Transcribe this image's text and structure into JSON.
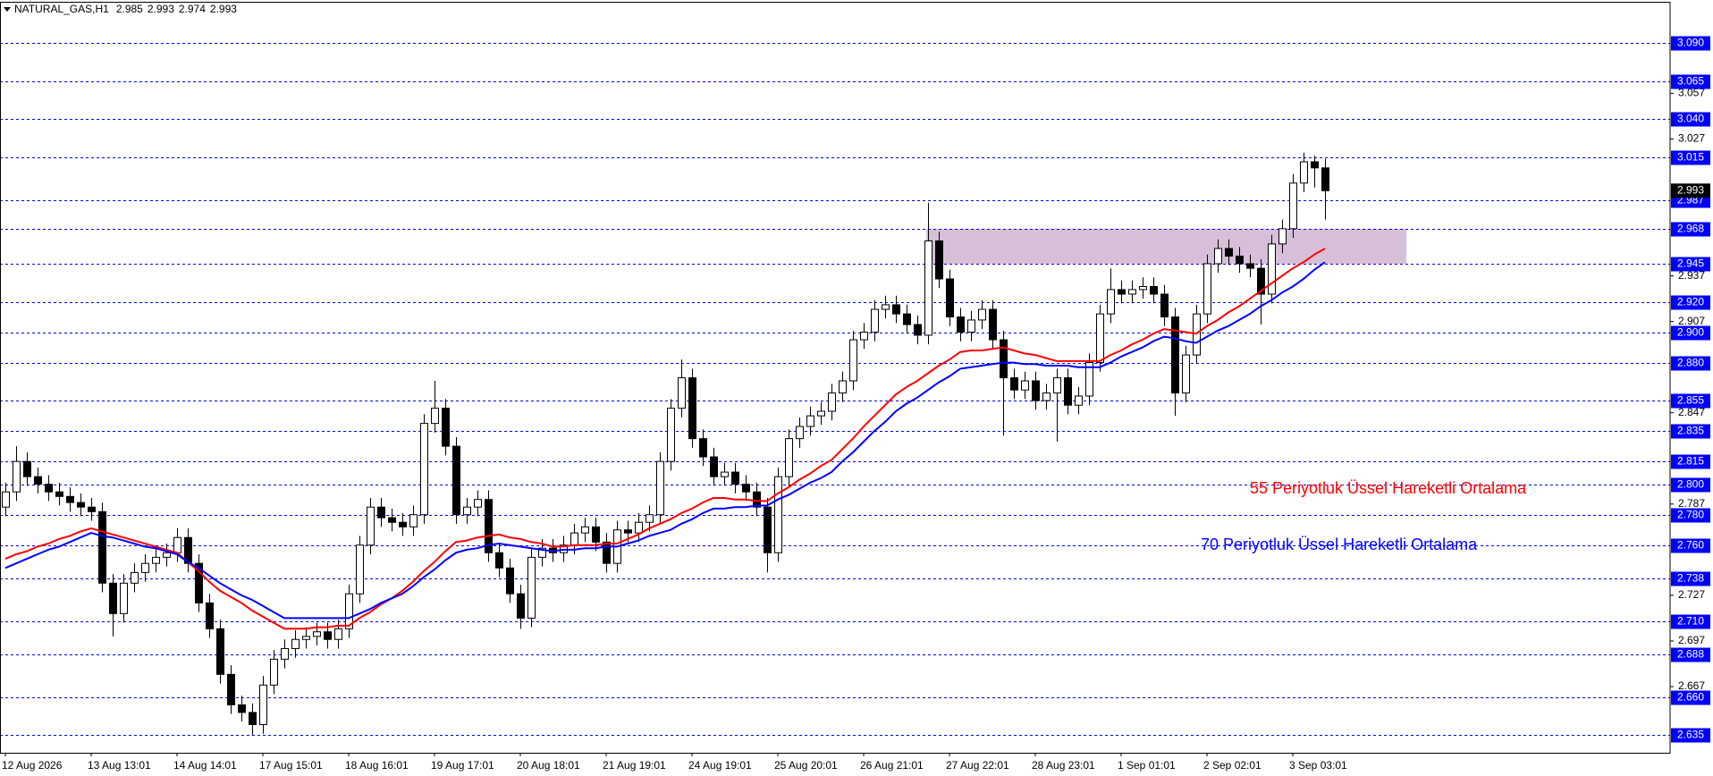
{
  "chart_data": {
    "type": "candlestick",
    "title": "NATURAL_GAS,H1",
    "ohlc_header": [
      2.985,
      2.993,
      2.974,
      2.993
    ],
    "ylim": [
      2.6235,
      3.1166
    ],
    "yticks": [
      3.057,
      3.027,
      2.937,
      2.907,
      2.847,
      2.787,
      2.727,
      2.697,
      2.667
    ],
    "levels": [
      {
        "value": 3.09,
        "label": "3.090"
      },
      3.065,
      {
        "value": 3.04,
        "label": "3.040"
      },
      3.015,
      2.987,
      2.968,
      2.945,
      {
        "value": 2.92,
        "label": "2.920"
      },
      {
        "value": 2.9,
        "label": "2.900"
      },
      {
        "value": 2.88,
        "label": "2.880"
      },
      2.855,
      2.835,
      2.815,
      {
        "value": 2.8,
        "label": "2.800"
      },
      {
        "value": 2.78,
        "label": "2.780"
      },
      {
        "value": 2.76,
        "label": "2.760"
      },
      2.738,
      {
        "value": 2.71,
        "label": "2.710"
      },
      2.688,
      {
        "value": 2.66,
        "label": "2.660"
      },
      2.635
    ],
    "level_color": "#0000ff",
    "zone": {
      "low": 2.945,
      "high": 2.968,
      "color": "#d8bfd8"
    },
    "up_color": "#ffffff",
    "down_color": "#000000",
    "categories": [
      "12 Aug 2026",
      null,
      null,
      null,
      null,
      null,
      null,
      null,
      "13 Aug 13:01",
      null,
      null,
      null,
      null,
      null,
      null,
      null,
      "14 Aug 14:01",
      null,
      null,
      null,
      null,
      null,
      null,
      null,
      "17 Aug 15:01",
      null,
      null,
      null,
      null,
      null,
      null,
      null,
      "18 Aug 16:01",
      null,
      null,
      null,
      null,
      null,
      null,
      null,
      "19 Aug 17:01",
      null,
      null,
      null,
      null,
      null,
      null,
      null,
      "20 Aug 18:01",
      null,
      null,
      null,
      null,
      null,
      null,
      null,
      "21 Aug 19:01",
      null,
      null,
      null,
      null,
      null,
      null,
      null,
      "24 Aug 19:01",
      null,
      null,
      null,
      null,
      null,
      null,
      null,
      "25 Aug 20:01",
      null,
      null,
      null,
      null,
      null,
      null,
      null,
      "26 Aug 21:01",
      null,
      null,
      null,
      null,
      null,
      null,
      null,
      "27 Aug 22:01",
      null,
      null,
      null,
      null,
      null,
      null,
      null,
      "28 Aug 23:01",
      null,
      null,
      null,
      null,
      null,
      null,
      null,
      "1 Sep 01:01",
      null,
      null,
      null,
      null,
      null,
      null,
      null,
      "2 Sep 02:01",
      null,
      null,
      null,
      null,
      null,
      null,
      null,
      "3 Sep 03:01",
      null,
      null,
      null
    ],
    "ohlc": [
      [
        2.785,
        2.801,
        2.779,
        2.795
      ],
      [
        2.795,
        2.825,
        2.789,
        2.815
      ],
      [
        2.815,
        2.821,
        2.799,
        2.805
      ],
      [
        2.805,
        2.811,
        2.794,
        2.8
      ],
      [
        2.8,
        2.806,
        2.789,
        2.795
      ],
      [
        2.795,
        2.801,
        2.786,
        2.792
      ],
      [
        2.792,
        2.798,
        2.782,
        2.788
      ],
      [
        2.788,
        2.794,
        2.779,
        2.785
      ],
      [
        2.785,
        2.791,
        2.776,
        2.782
      ],
      [
        2.782,
        2.788,
        2.729,
        2.735
      ],
      [
        2.735,
        2.741,
        2.7,
        2.715
      ],
      [
        2.715,
        2.741,
        2.709,
        2.735
      ],
      [
        2.735,
        2.748,
        2.729,
        2.742
      ],
      [
        2.742,
        2.754,
        2.736,
        2.748
      ],
      [
        2.748,
        2.758,
        2.742,
        2.752
      ],
      [
        2.752,
        2.761,
        2.746,
        2.755
      ],
      [
        2.755,
        2.771,
        2.749,
        2.765
      ],
      [
        2.765,
        2.771,
        2.742,
        2.748
      ],
      [
        2.748,
        2.754,
        2.716,
        2.722
      ],
      [
        2.722,
        2.728,
        2.699,
        2.705
      ],
      [
        2.705,
        2.711,
        2.669,
        2.675
      ],
      [
        2.675,
        2.681,
        2.649,
        2.655
      ],
      [
        2.655,
        2.661,
        2.644,
        2.65
      ],
      [
        2.65,
        2.656,
        2.635,
        2.642
      ],
      [
        2.642,
        2.674,
        2.636,
        2.668
      ],
      [
        2.668,
        2.691,
        2.662,
        2.685
      ],
      [
        2.685,
        2.698,
        2.679,
        2.692
      ],
      [
        2.692,
        2.704,
        2.686,
        2.698
      ],
      [
        2.698,
        2.706,
        2.692,
        2.7
      ],
      [
        2.7,
        2.709,
        2.694,
        2.703
      ],
      [
        2.703,
        2.709,
        2.692,
        2.698
      ],
      [
        2.698,
        2.711,
        2.692,
        2.705
      ],
      [
        2.705,
        2.734,
        2.699,
        2.728
      ],
      [
        2.728,
        2.766,
        2.722,
        2.76
      ],
      [
        2.76,
        2.791,
        2.754,
        2.785
      ],
      [
        2.785,
        2.791,
        2.772,
        2.778
      ],
      [
        2.778,
        2.784,
        2.769,
        2.775
      ],
      [
        2.775,
        2.781,
        2.766,
        2.772
      ],
      [
        2.772,
        2.786,
        2.766,
        2.78
      ],
      [
        2.78,
        2.846,
        2.774,
        2.84
      ],
      [
        2.84,
        2.868,
        2.834,
        2.85
      ],
      [
        2.85,
        2.856,
        2.819,
        2.825
      ],
      [
        2.825,
        2.831,
        2.774,
        2.78
      ],
      [
        2.78,
        2.791,
        2.774,
        2.785
      ],
      [
        2.785,
        2.796,
        2.779,
        2.79
      ],
      [
        2.79,
        2.796,
        2.749,
        2.755
      ],
      [
        2.755,
        2.761,
        2.739,
        2.745
      ],
      [
        2.745,
        2.751,
        2.722,
        2.728
      ],
      [
        2.728,
        2.734,
        2.705,
        2.712
      ],
      [
        2.712,
        2.758,
        2.706,
        2.752
      ],
      [
        2.752,
        2.764,
        2.746,
        2.758
      ],
      [
        2.758,
        2.764,
        2.749,
        2.755
      ],
      [
        2.755,
        2.766,
        2.749,
        2.76
      ],
      [
        2.76,
        2.774,
        2.754,
        2.768
      ],
      [
        2.768,
        2.778,
        2.762,
        2.772
      ],
      [
        2.772,
        2.778,
        2.756,
        2.762
      ],
      [
        2.762,
        2.768,
        2.742,
        2.748
      ],
      [
        2.748,
        2.776,
        2.742,
        2.77
      ],
      [
        2.77,
        2.776,
        2.762,
        2.768
      ],
      [
        2.768,
        2.781,
        2.762,
        2.775
      ],
      [
        2.775,
        2.786,
        2.769,
        2.78
      ],
      [
        2.78,
        2.821,
        2.774,
        2.815
      ],
      [
        2.815,
        2.856,
        2.809,
        2.85
      ],
      [
        2.85,
        2.882,
        2.844,
        2.87
      ],
      [
        2.87,
        2.876,
        2.824,
        2.83
      ],
      [
        2.83,
        2.836,
        2.812,
        2.818
      ],
      [
        2.818,
        2.824,
        2.799,
        2.805
      ],
      [
        2.805,
        2.814,
        2.799,
        2.808
      ],
      [
        2.808,
        2.814,
        2.794,
        2.8
      ],
      [
        2.8,
        2.806,
        2.789,
        2.795
      ],
      [
        2.795,
        2.801,
        2.779,
        2.785
      ],
      [
        2.785,
        2.791,
        2.742,
        2.755
      ],
      [
        2.755,
        2.811,
        2.749,
        2.805
      ],
      [
        2.805,
        2.836,
        2.799,
        2.83
      ],
      [
        2.83,
        2.844,
        2.824,
        2.838
      ],
      [
        2.838,
        2.851,
        2.832,
        2.845
      ],
      [
        2.845,
        2.854,
        2.839,
        2.848
      ],
      [
        2.848,
        2.866,
        2.842,
        2.86
      ],
      [
        2.86,
        2.874,
        2.854,
        2.868
      ],
      [
        2.868,
        2.901,
        2.862,
        2.895
      ],
      [
        2.895,
        2.906,
        2.889,
        2.9
      ],
      [
        2.9,
        2.921,
        2.894,
        2.915
      ],
      [
        2.915,
        2.924,
        2.909,
        2.918
      ],
      [
        2.918,
        2.924,
        2.906,
        2.912
      ],
      [
        2.912,
        2.918,
        2.899,
        2.905
      ],
      [
        2.905,
        2.911,
        2.892,
        2.898
      ],
      [
        2.898,
        2.985,
        2.892,
        2.96
      ],
      [
        2.96,
        2.966,
        2.929,
        2.935
      ],
      [
        2.935,
        2.941,
        2.904,
        2.91
      ],
      [
        2.91,
        2.916,
        2.894,
        2.9
      ],
      [
        2.9,
        2.914,
        2.894,
        2.908
      ],
      [
        2.908,
        2.921,
        2.902,
        2.915
      ],
      [
        2.915,
        2.921,
        2.889,
        2.895
      ],
      [
        2.895,
        2.901,
        2.832,
        2.87
      ],
      [
        2.87,
        2.876,
        2.856,
        2.862
      ],
      [
        2.862,
        2.874,
        2.856,
        2.868
      ],
      [
        2.868,
        2.874,
        2.849,
        2.855
      ],
      [
        2.855,
        2.866,
        2.849,
        2.86
      ],
      [
        2.86,
        2.876,
        2.828,
        2.87
      ],
      [
        2.87,
        2.876,
        2.846,
        2.852
      ],
      [
        2.852,
        2.864,
        2.846,
        2.858
      ],
      [
        2.858,
        2.886,
        2.852,
        2.88
      ],
      [
        2.88,
        2.918,
        2.874,
        2.912
      ],
      [
        2.912,
        2.942,
        2.906,
        2.928
      ],
      [
        2.928,
        2.934,
        2.919,
        2.925
      ],
      [
        2.925,
        2.934,
        2.919,
        2.928
      ],
      [
        2.928,
        2.936,
        2.922,
        2.93
      ],
      [
        2.93,
        2.936,
        2.919,
        2.925
      ],
      [
        2.925,
        2.931,
        2.904,
        2.91
      ],
      [
        2.91,
        2.916,
        2.845,
        2.86
      ],
      [
        2.86,
        2.891,
        2.854,
        2.885
      ],
      [
        2.885,
        2.918,
        2.879,
        2.912
      ],
      [
        2.912,
        2.951,
        2.906,
        2.945
      ],
      [
        2.945,
        2.961,
        2.939,
        2.955
      ],
      [
        2.955,
        2.961,
        2.944,
        2.95
      ],
      [
        2.95,
        2.956,
        2.939,
        2.945
      ],
      [
        2.945,
        2.951,
        2.936,
        2.942
      ],
      [
        2.942,
        2.948,
        2.905,
        2.925
      ],
      [
        2.925,
        2.964,
        2.919,
        2.958
      ],
      [
        2.958,
        2.974,
        2.952,
        2.968
      ],
      [
        2.968,
        3.004,
        2.962,
        2.998
      ],
      [
        2.998,
        3.018,
        2.992,
        3.012
      ],
      [
        3.012,
        3.016,
        2.995,
        3.008
      ],
      [
        3.008,
        3.014,
        2.974,
        2.993
      ]
    ],
    "series": [
      {
        "name": "55 Periyotluk Üssel Hareketli Ortalama",
        "color": "#ff0000",
        "values": [
          2.751,
          2.754,
          2.756,
          2.759,
          2.761,
          2.764,
          2.766,
          2.769,
          2.771,
          2.769,
          2.767,
          2.765,
          2.763,
          2.761,
          2.759,
          2.757,
          2.755,
          2.749,
          2.743,
          2.736,
          2.73,
          2.726,
          2.722,
          2.717,
          2.713,
          2.709,
          2.705,
          2.705,
          2.705,
          2.706,
          2.706,
          2.707,
          2.707,
          2.712,
          2.716,
          2.721,
          2.725,
          2.73,
          2.736,
          2.743,
          2.749,
          2.756,
          2.762,
          2.763,
          2.765,
          2.766,
          2.767,
          2.765,
          2.764,
          2.762,
          2.761,
          2.759,
          2.759,
          2.76,
          2.76,
          2.76,
          2.761,
          2.761,
          2.764,
          2.767,
          2.771,
          2.774,
          2.777,
          2.781,
          2.784,
          2.788,
          2.791,
          2.791,
          2.79,
          2.79,
          2.789,
          2.789,
          2.794,
          2.798,
          2.803,
          2.807,
          2.812,
          2.816,
          2.823,
          2.83,
          2.838,
          2.845,
          2.852,
          2.859,
          2.864,
          2.868,
          2.873,
          2.878,
          2.882,
          2.887,
          2.888,
          2.888,
          2.889,
          2.89,
          2.888,
          2.886,
          2.885,
          2.883,
          2.881,
          2.881,
          2.881,
          2.881,
          2.881,
          2.885,
          2.888,
          2.892,
          2.895,
          2.899,
          2.902,
          2.901,
          2.9,
          2.899,
          2.904,
          2.908,
          2.913,
          2.917,
          2.922,
          2.927,
          2.932,
          2.937,
          2.942,
          2.946,
          2.951,
          2.955
        ]
      },
      {
        "name": "70  Periyotluk Üssel Hareketli Ortalama",
        "color": "#0000ff",
        "values": [
          2.745,
          2.748,
          2.751,
          2.754,
          2.757,
          2.759,
          2.762,
          2.765,
          2.768,
          2.766,
          2.765,
          2.763,
          2.761,
          2.759,
          2.758,
          2.756,
          2.754,
          2.749,
          2.745,
          2.74,
          2.735,
          2.731,
          2.727,
          2.724,
          2.72,
          2.716,
          2.712,
          2.712,
          2.712,
          2.712,
          2.712,
          2.712,
          2.712,
          2.715,
          2.718,
          2.722,
          2.725,
          2.728,
          2.733,
          2.739,
          2.744,
          2.75,
          2.755,
          2.757,
          2.758,
          2.76,
          2.761,
          2.76,
          2.759,
          2.758,
          2.757,
          2.756,
          2.757,
          2.757,
          2.758,
          2.758,
          2.759,
          2.759,
          2.761,
          2.763,
          2.766,
          2.768,
          2.77,
          2.774,
          2.777,
          2.781,
          2.784,
          2.784,
          2.785,
          2.785,
          2.786,
          2.786,
          2.79,
          2.793,
          2.797,
          2.801,
          2.804,
          2.808,
          2.815,
          2.821,
          2.828,
          2.835,
          2.841,
          2.848,
          2.853,
          2.857,
          2.862,
          2.867,
          2.871,
          2.876,
          2.877,
          2.878,
          2.879,
          2.88,
          2.88,
          2.879,
          2.879,
          2.878,
          2.878,
          2.878,
          2.877,
          2.877,
          2.877,
          2.88,
          2.884,
          2.887,
          2.89,
          2.894,
          2.897,
          2.896,
          2.894,
          2.893,
          2.897,
          2.901,
          2.904,
          2.908,
          2.912,
          2.917,
          2.921,
          2.926,
          2.93,
          2.935,
          2.941,
          2.946
        ]
      }
    ]
  }
}
